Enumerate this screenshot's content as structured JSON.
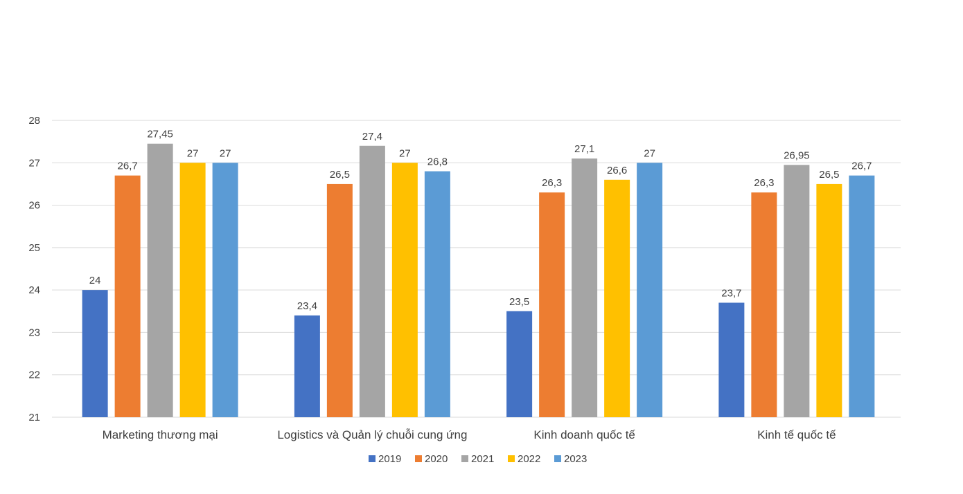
{
  "chart_data": {
    "type": "bar",
    "title": "",
    "xlabel": "",
    "ylabel": "",
    "ylim": [
      21,
      28
    ],
    "yticks": [
      21,
      22,
      23,
      24,
      25,
      26,
      27,
      28
    ],
    "grid": true,
    "legend_position": "bottom",
    "categories": [
      "Marketing thương mại",
      "Logistics và Quản lý chuỗi cung ứng",
      "Kinh doanh quốc tế",
      "Kinh tế quốc tế"
    ],
    "series": [
      {
        "name": "2019",
        "color": "#4472C4",
        "values": [
          24,
          23.4,
          23.5,
          23.7
        ],
        "labels": [
          "24",
          "23,4",
          "23,5",
          "23,7"
        ]
      },
      {
        "name": "2020",
        "color": "#ED7D31",
        "values": [
          26.7,
          26.5,
          26.3,
          26.3
        ],
        "labels": [
          "26,7",
          "26,5",
          "26,3",
          "26,3"
        ]
      },
      {
        "name": "2021",
        "color": "#A5A5A5",
        "values": [
          27.45,
          27.4,
          27.1,
          26.95
        ],
        "labels": [
          "27,45",
          "27,4",
          "27,1",
          "26,95"
        ]
      },
      {
        "name": "2022",
        "color": "#FFC000",
        "values": [
          27,
          27,
          26.6,
          26.5
        ],
        "labels": [
          "27",
          "27",
          "26,6",
          "26,5"
        ]
      },
      {
        "name": "2023",
        "color": "#5B9BD5",
        "values": [
          27,
          26.8,
          27,
          26.7
        ],
        "labels": [
          "27",
          "26,8",
          "27",
          "26,7"
        ]
      }
    ]
  }
}
